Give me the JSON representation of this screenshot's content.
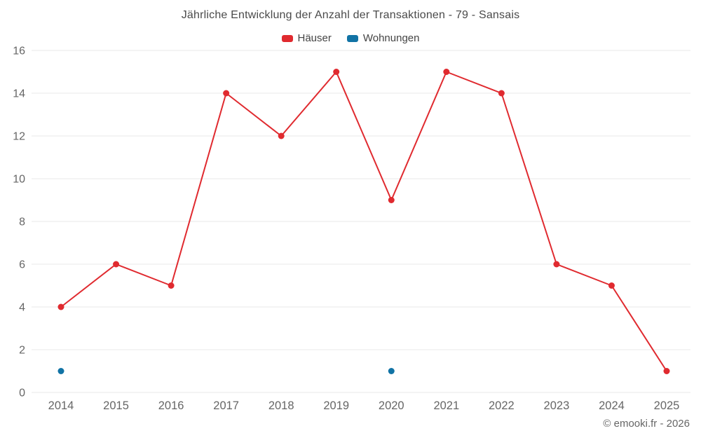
{
  "title": "Jährliche Entwicklung der Anzahl der Transaktionen - 79 - Sansais",
  "footer": "© emooki.fr - 2026",
  "colors": {
    "hauser": "#e02a2f",
    "wohnungen": "#1173a5",
    "grid": "#e8e8e8",
    "tick_text": "#666666"
  },
  "chart_data": {
    "type": "line",
    "title": "Jährliche Entwicklung der Anzahl der Transaktionen - 79 - Sansais",
    "categories": [
      "2014",
      "2015",
      "2016",
      "2017",
      "2018",
      "2019",
      "2020",
      "2021",
      "2022",
      "2023",
      "2024",
      "2025"
    ],
    "series": [
      {
        "name": "Häuser",
        "color": "#e02a2f",
        "values": [
          4,
          6,
          5,
          14,
          12,
          15,
          9,
          15,
          14,
          6,
          5,
          1
        ]
      },
      {
        "name": "Wohnungen",
        "color": "#1173a5",
        "values": [
          1,
          null,
          null,
          null,
          null,
          null,
          1,
          null,
          null,
          null,
          null,
          null
        ]
      }
    ],
    "xlabel": "",
    "ylabel": "",
    "ylim": [
      0,
      16
    ],
    "ytick_step": 2,
    "grid": true,
    "legend_position": "top"
  }
}
